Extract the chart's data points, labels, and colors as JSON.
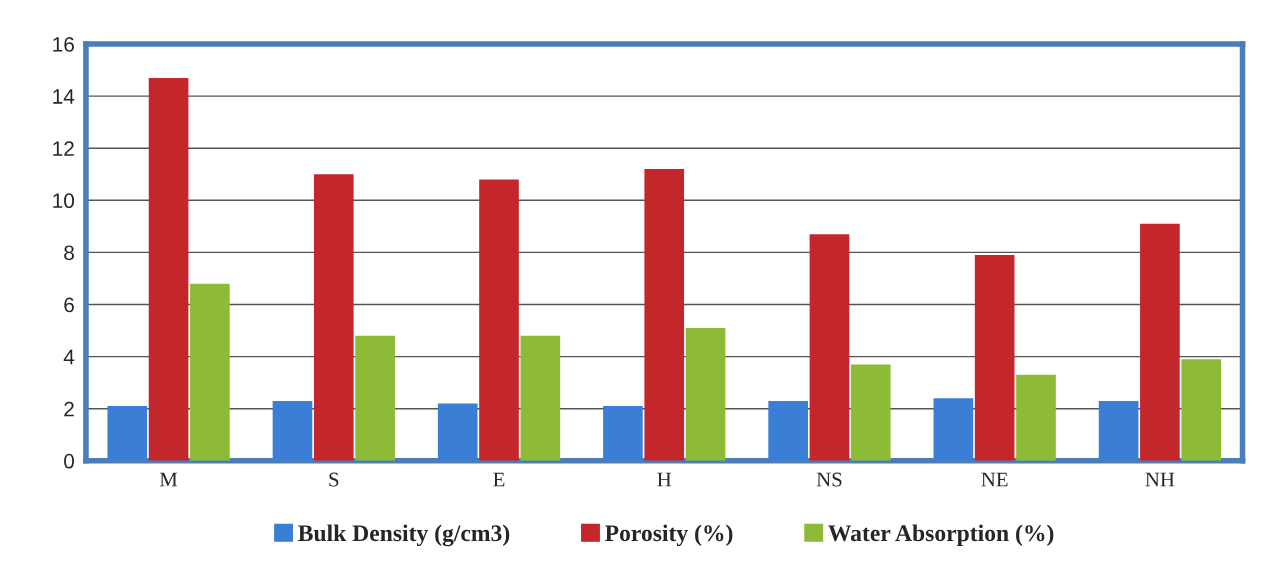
{
  "chart_data": {
    "type": "bar",
    "categories": [
      "M",
      "S",
      "E",
      "H",
      "NS",
      "NE",
      "NH"
    ],
    "series": [
      {
        "name": "Bulk Density (g/cm3)",
        "color": "#3a7fd5",
        "values": [
          2.1,
          2.3,
          2.2,
          2.1,
          2.3,
          2.4,
          2.3
        ]
      },
      {
        "name": "Porosity (%)",
        "color": "#c3272b",
        "values": [
          14.7,
          11.0,
          10.8,
          11.2,
          8.7,
          7.9,
          9.1
        ]
      },
      {
        "name": "Water Absorption (%)",
        "color": "#8dbb38",
        "values": [
          6.8,
          4.8,
          4.8,
          5.1,
          3.7,
          3.3,
          3.9
        ]
      }
    ],
    "ylim": [
      0,
      16
    ],
    "yticks": [
      0,
      2,
      4,
      6,
      8,
      10,
      12,
      14,
      16
    ],
    "grid": "y",
    "legend": "bottom"
  }
}
